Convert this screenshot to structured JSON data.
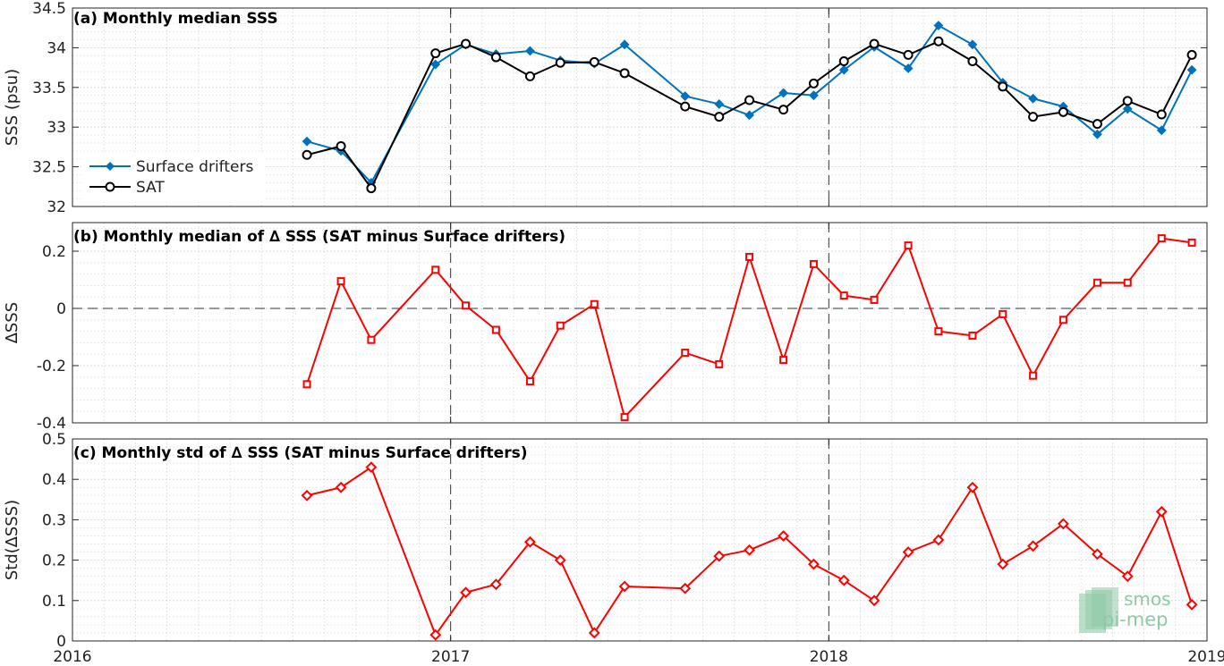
{
  "logo": {
    "line1": "smos",
    "line2": "pi-mep",
    "color": "#8fc9a6"
  },
  "colors": {
    "drifters": "#0072bd",
    "sat": "#000000",
    "diff": "#ff0000",
    "grid": "#c8c8c8"
  },
  "x_axis": {
    "ticks": [
      2016,
      2017,
      2018,
      2019
    ],
    "tick_labels": [
      "2016",
      "2017",
      "2018",
      "2019"
    ]
  },
  "chart_data": [
    {
      "type": "line",
      "title": "(a) Monthly median SSS",
      "xlabel": "",
      "ylabel": "SSS (psu)",
      "xlim": [
        2016.0,
        2019.0
      ],
      "ylim": [
        32,
        34.5
      ],
      "yticks": [
        32,
        32.5,
        33,
        33.5,
        34,
        34.5
      ],
      "ytick_labels": [
        "32",
        "32.5",
        "33",
        "33.5",
        "34",
        "34.5"
      ],
      "grid": true,
      "legend_placement": "left",
      "x": [
        2016.62,
        2016.71,
        2016.79,
        2016.96,
        2017.04,
        2017.12,
        2017.21,
        2017.29,
        2017.38,
        2017.46,
        2017.62,
        2017.71,
        2017.79,
        2017.88,
        2017.96,
        2018.04,
        2018.12,
        2018.21,
        2018.29,
        2018.38,
        2018.46,
        2018.54,
        2018.62,
        2018.71,
        2018.79,
        2018.88,
        2018.96
      ],
      "series": [
        {
          "name": "Surface drifters",
          "color": "#0072bd",
          "marker": "diamond",
          "values": [
            32.82,
            32.7,
            32.3,
            33.79,
            34.04,
            33.92,
            33.96,
            33.84,
            33.8,
            34.04,
            33.39,
            33.29,
            33.15,
            33.43,
            33.4,
            33.72,
            34.01,
            33.74,
            34.28,
            34.04,
            33.56,
            33.36,
            33.26,
            32.91,
            33.23,
            32.96,
            33.72
          ]
        },
        {
          "name": "SAT",
          "color": "#000000",
          "marker": "circle",
          "values": [
            32.65,
            32.76,
            32.23,
            33.93,
            34.05,
            33.88,
            33.64,
            33.81,
            33.82,
            33.68,
            33.26,
            33.13,
            33.34,
            33.22,
            33.55,
            33.83,
            34.05,
            33.91,
            34.08,
            33.83,
            33.51,
            33.13,
            33.19,
            33.04,
            33.33,
            33.16,
            33.91
          ]
        }
      ]
    },
    {
      "type": "line",
      "title": "(b) Monthly median of ∆ SSS (SAT minus Surface drifters)",
      "xlabel": "",
      "ylabel": "∆SSS",
      "xlim": [
        2016.0,
        2019.0
      ],
      "ylim": [
        -0.4,
        0.3
      ],
      "yticks": [
        -0.4,
        -0.2,
        0,
        0.2
      ],
      "ytick_labels": [
        "-0.4",
        "-0.2",
        "0",
        "0.2"
      ],
      "grid": true,
      "x": [
        2016.62,
        2016.71,
        2016.79,
        2016.96,
        2017.04,
        2017.12,
        2017.21,
        2017.29,
        2017.38,
        2017.46,
        2017.62,
        2017.71,
        2017.79,
        2017.88,
        2017.96,
        2018.04,
        2018.12,
        2018.21,
        2018.29,
        2018.38,
        2018.46,
        2018.54,
        2018.62,
        2018.71,
        2018.79,
        2018.88,
        2018.96
      ],
      "series": [
        {
          "name": "",
          "color": "#ff0000",
          "marker": "square",
          "values": [
            -0.265,
            0.095,
            -0.11,
            0.135,
            0.01,
            -0.075,
            -0.255,
            -0.06,
            0.015,
            -0.38,
            -0.155,
            -0.195,
            0.18,
            -0.18,
            0.155,
            0.045,
            0.03,
            0.22,
            -0.08,
            -0.095,
            -0.02,
            -0.235,
            -0.04,
            0.09,
            0.09,
            0.245,
            0.23
          ]
        }
      ]
    },
    {
      "type": "line",
      "title": "(c) Monthly std of ∆ SSS (SAT minus Surface drifters)",
      "xlabel": "",
      "ylabel": "Std(∆SSS)",
      "xlim": [
        2016.0,
        2019.0
      ],
      "ylim": [
        0,
        0.5
      ],
      "yticks": [
        0,
        0.1,
        0.2,
        0.3,
        0.4,
        0.5
      ],
      "ytick_labels": [
        "0",
        "0.1",
        "0.2",
        "0.3",
        "0.4",
        "0.5"
      ],
      "grid": true,
      "x": [
        2016.62,
        2016.71,
        2016.79,
        2016.96,
        2017.04,
        2017.12,
        2017.21,
        2017.29,
        2017.38,
        2017.46,
        2017.62,
        2017.71,
        2017.79,
        2017.88,
        2017.96,
        2018.04,
        2018.12,
        2018.21,
        2018.29,
        2018.38,
        2018.46,
        2018.54,
        2018.62,
        2018.71,
        2018.79,
        2018.88,
        2018.96
      ],
      "series": [
        {
          "name": "",
          "color": "#ff0000",
          "marker": "diamond",
          "values": [
            0.36,
            0.38,
            0.43,
            0.015,
            0.12,
            0.14,
            0.245,
            0.2,
            0.02,
            0.135,
            0.13,
            0.21,
            0.225,
            0.26,
            0.19,
            0.15,
            0.1,
            0.22,
            0.25,
            0.38,
            0.19,
            0.235,
            0.29,
            0.215,
            0.16,
            0.32,
            0.09
          ]
        }
      ]
    }
  ]
}
